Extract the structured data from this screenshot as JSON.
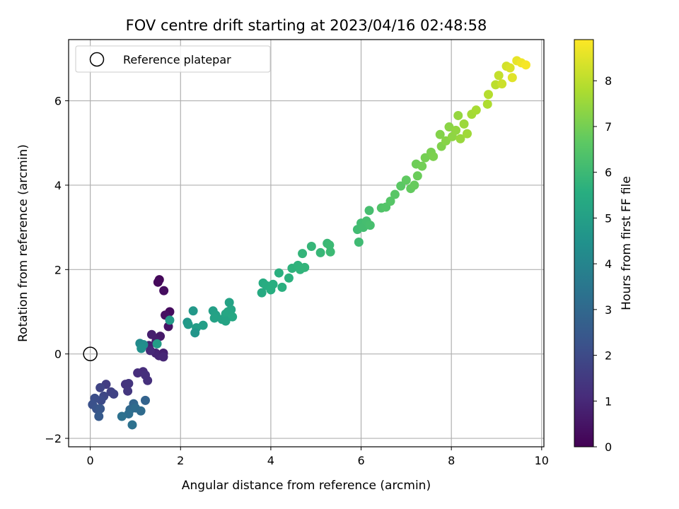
{
  "chart_data": {
    "type": "scatter",
    "title": "FOV centre drift starting at 2023/04/16 02:48:58",
    "xlabel": "Angular distance from reference (arcmin)",
    "ylabel": "Rotation from reference (arcmin)",
    "xlim": [
      -0.48,
      10.05
    ],
    "ylim": [
      -2.2,
      7.45
    ],
    "xticks": [
      0,
      2,
      4,
      6,
      8,
      10
    ],
    "yticks": [
      -2,
      0,
      2,
      4,
      6
    ],
    "grid": true,
    "legend": {
      "placement": "upper-left",
      "entries": [
        "Reference platepar"
      ]
    },
    "reference_point": {
      "x": 0,
      "y": 0,
      "label": "Reference platepar"
    },
    "colorbar": {
      "label": "Hours from first FF file",
      "range": [
        0,
        8.9
      ],
      "ticks": [
        0,
        1,
        2,
        3,
        4,
        5,
        6,
        7,
        8
      ],
      "colormap": "viridis"
    },
    "points": [
      {
        "x": 1.53,
        "y": 1.76,
        "c": 0.15
      },
      {
        "x": 1.5,
        "y": 1.7,
        "c": 0.2
      },
      {
        "x": 1.63,
        "y": 1.5,
        "c": 0.3
      },
      {
        "x": 1.76,
        "y": 1.0,
        "c": 0.25
      },
      {
        "x": 1.66,
        "y": 0.92,
        "c": 0.4
      },
      {
        "x": 1.73,
        "y": 0.65,
        "c": 0.45
      },
      {
        "x": 1.55,
        "y": 0.42,
        "c": 0.6
      },
      {
        "x": 1.46,
        "y": 0.3,
        "c": 0.7
      },
      {
        "x": 1.36,
        "y": 0.46,
        "c": 0.75
      },
      {
        "x": 1.3,
        "y": 0.2,
        "c": 0.8
      },
      {
        "x": 1.45,
        "y": 0.02,
        "c": 0.85
      },
      {
        "x": 1.52,
        "y": -0.04,
        "c": 0.9
      },
      {
        "x": 1.62,
        "y": 0.02,
        "c": 0.8
      },
      {
        "x": 1.62,
        "y": -0.07,
        "c": 0.95
      },
      {
        "x": 1.33,
        "y": 0.08,
        "c": 1.0
      },
      {
        "x": 1.17,
        "y": -0.42,
        "c": 1.1
      },
      {
        "x": 1.05,
        "y": -0.45,
        "c": 1.15
      },
      {
        "x": 1.22,
        "y": -0.5,
        "c": 1.2
      },
      {
        "x": 1.27,
        "y": -0.63,
        "c": 1.2
      },
      {
        "x": 0.78,
        "y": -0.72,
        "c": 1.3
      },
      {
        "x": 0.85,
        "y": -0.7,
        "c": 1.35
      },
      {
        "x": 0.83,
        "y": -0.88,
        "c": 1.4
      },
      {
        "x": 0.35,
        "y": -0.72,
        "c": 1.6
      },
      {
        "x": 0.46,
        "y": -0.9,
        "c": 1.7
      },
      {
        "x": 0.52,
        "y": -0.95,
        "c": 1.75
      },
      {
        "x": 0.22,
        "y": -0.8,
        "c": 1.8
      },
      {
        "x": 0.3,
        "y": -1.0,
        "c": 1.9
      },
      {
        "x": 0.24,
        "y": -1.1,
        "c": 2.0
      },
      {
        "x": 0.1,
        "y": -1.05,
        "c": 2.1
      },
      {
        "x": 0.05,
        "y": -1.2,
        "c": 2.2
      },
      {
        "x": 0.14,
        "y": -1.3,
        "c": 2.3
      },
      {
        "x": 0.22,
        "y": -1.3,
        "c": 2.4
      },
      {
        "x": 0.19,
        "y": -1.48,
        "c": 2.5
      },
      {
        "x": 1.22,
        "y": -1.1,
        "c": 2.8
      },
      {
        "x": 0.96,
        "y": -1.18,
        "c": 2.9
      },
      {
        "x": 0.88,
        "y": -1.32,
        "c": 3.0
      },
      {
        "x": 1.0,
        "y": -1.28,
        "c": 3.1
      },
      {
        "x": 1.12,
        "y": -1.35,
        "c": 3.1
      },
      {
        "x": 0.85,
        "y": -1.42,
        "c": 3.2
      },
      {
        "x": 0.7,
        "y": -1.48,
        "c": 3.3
      },
      {
        "x": 0.93,
        "y": -1.68,
        "c": 3.3
      },
      {
        "x": 1.1,
        "y": 0.25,
        "c": 4.2
      },
      {
        "x": 1.18,
        "y": 0.22,
        "c": 4.3
      },
      {
        "x": 1.13,
        "y": 0.13,
        "c": 4.4
      },
      {
        "x": 1.48,
        "y": 0.24,
        "c": 4.9
      },
      {
        "x": 1.76,
        "y": 0.8,
        "c": 4.8
      },
      {
        "x": 2.28,
        "y": 1.02,
        "c": 4.7
      },
      {
        "x": 2.15,
        "y": 0.75,
        "c": 4.6
      },
      {
        "x": 2.17,
        "y": 0.7,
        "c": 4.8
      },
      {
        "x": 2.35,
        "y": 0.62,
        "c": 4.9
      },
      {
        "x": 2.5,
        "y": 0.68,
        "c": 4.95
      },
      {
        "x": 2.32,
        "y": 0.5,
        "c": 4.6
      },
      {
        "x": 2.72,
        "y": 1.02,
        "c": 5.0
      },
      {
        "x": 2.78,
        "y": 0.92,
        "c": 5.05
      },
      {
        "x": 2.75,
        "y": 0.85,
        "c": 5.1
      },
      {
        "x": 2.92,
        "y": 0.82,
        "c": 5.1
      },
      {
        "x": 3.0,
        "y": 0.95,
        "c": 5.2
      },
      {
        "x": 3.05,
        "y": 1.0,
        "c": 5.25
      },
      {
        "x": 3.08,
        "y": 1.22,
        "c": 5.1
      },
      {
        "x": 3.12,
        "y": 1.05,
        "c": 5.2
      },
      {
        "x": 3.15,
        "y": 0.88,
        "c": 5.3
      },
      {
        "x": 3.0,
        "y": 0.78,
        "c": 5.15
      },
      {
        "x": 3.8,
        "y": 1.45,
        "c": 5.4
      },
      {
        "x": 3.83,
        "y": 1.68,
        "c": 5.45
      },
      {
        "x": 3.9,
        "y": 1.62,
        "c": 5.5
      },
      {
        "x": 4.0,
        "y": 1.52,
        "c": 5.55
      },
      {
        "x": 4.05,
        "y": 1.65,
        "c": 5.55
      },
      {
        "x": 4.18,
        "y": 1.92,
        "c": 5.6
      },
      {
        "x": 4.25,
        "y": 1.58,
        "c": 5.6
      },
      {
        "x": 4.4,
        "y": 1.8,
        "c": 5.65
      },
      {
        "x": 4.47,
        "y": 2.03,
        "c": 5.7
      },
      {
        "x": 4.6,
        "y": 2.1,
        "c": 5.72
      },
      {
        "x": 4.65,
        "y": 2.0,
        "c": 5.75
      },
      {
        "x": 4.75,
        "y": 2.05,
        "c": 5.78
      },
      {
        "x": 4.7,
        "y": 2.38,
        "c": 5.8
      },
      {
        "x": 4.9,
        "y": 2.55,
        "c": 5.85
      },
      {
        "x": 5.1,
        "y": 2.4,
        "c": 5.9
      },
      {
        "x": 5.25,
        "y": 2.62,
        "c": 5.95
      },
      {
        "x": 5.3,
        "y": 2.58,
        "c": 6.0
      },
      {
        "x": 5.32,
        "y": 2.42,
        "c": 6.0
      },
      {
        "x": 5.95,
        "y": 2.65,
        "c": 6.05
      },
      {
        "x": 5.92,
        "y": 2.95,
        "c": 6.1
      },
      {
        "x": 6.0,
        "y": 3.1,
        "c": 6.12
      },
      {
        "x": 6.05,
        "y": 3.0,
        "c": 6.15
      },
      {
        "x": 6.12,
        "y": 3.15,
        "c": 6.18
      },
      {
        "x": 6.18,
        "y": 3.4,
        "c": 6.2
      },
      {
        "x": 6.2,
        "y": 3.05,
        "c": 6.22
      },
      {
        "x": 6.45,
        "y": 3.46,
        "c": 6.4
      },
      {
        "x": 6.55,
        "y": 3.48,
        "c": 6.45
      },
      {
        "x": 6.65,
        "y": 3.62,
        "c": 6.5
      },
      {
        "x": 6.75,
        "y": 3.78,
        "c": 6.55
      },
      {
        "x": 6.88,
        "y": 3.98,
        "c": 6.6
      },
      {
        "x": 7.0,
        "y": 4.12,
        "c": 6.7
      },
      {
        "x": 7.1,
        "y": 3.92,
        "c": 6.75
      },
      {
        "x": 7.18,
        "y": 4.0,
        "c": 6.8
      },
      {
        "x": 7.25,
        "y": 4.22,
        "c": 6.85
      },
      {
        "x": 7.22,
        "y": 4.5,
        "c": 6.9
      },
      {
        "x": 7.35,
        "y": 4.45,
        "c": 6.95
      },
      {
        "x": 7.42,
        "y": 4.65,
        "c": 7.0
      },
      {
        "x": 7.55,
        "y": 4.78,
        "c": 7.05
      },
      {
        "x": 7.6,
        "y": 4.68,
        "c": 7.1
      },
      {
        "x": 7.78,
        "y": 4.92,
        "c": 7.15
      },
      {
        "x": 7.75,
        "y": 5.2,
        "c": 7.2
      },
      {
        "x": 7.88,
        "y": 5.05,
        "c": 7.25
      },
      {
        "x": 7.95,
        "y": 5.38,
        "c": 7.3
      },
      {
        "x": 8.02,
        "y": 5.15,
        "c": 7.35
      },
      {
        "x": 8.1,
        "y": 5.3,
        "c": 7.4
      },
      {
        "x": 8.15,
        "y": 5.65,
        "c": 7.45
      },
      {
        "x": 8.2,
        "y": 5.1,
        "c": 7.5
      },
      {
        "x": 8.28,
        "y": 5.45,
        "c": 7.55
      },
      {
        "x": 8.35,
        "y": 5.22,
        "c": 7.6
      },
      {
        "x": 8.45,
        "y": 5.68,
        "c": 7.65
      },
      {
        "x": 8.55,
        "y": 5.78,
        "c": 7.7
      },
      {
        "x": 8.8,
        "y": 5.92,
        "c": 7.8
      },
      {
        "x": 8.82,
        "y": 6.15,
        "c": 7.9
      },
      {
        "x": 8.98,
        "y": 6.38,
        "c": 8.0
      },
      {
        "x": 9.05,
        "y": 6.6,
        "c": 8.1
      },
      {
        "x": 9.12,
        "y": 6.4,
        "c": 8.2
      },
      {
        "x": 9.22,
        "y": 6.82,
        "c": 8.3
      },
      {
        "x": 9.3,
        "y": 6.78,
        "c": 8.4
      },
      {
        "x": 9.35,
        "y": 6.55,
        "c": 8.5
      },
      {
        "x": 9.45,
        "y": 6.95,
        "c": 8.6
      },
      {
        "x": 9.55,
        "y": 6.9,
        "c": 8.7
      },
      {
        "x": 9.65,
        "y": 6.85,
        "c": 8.8
      }
    ]
  }
}
